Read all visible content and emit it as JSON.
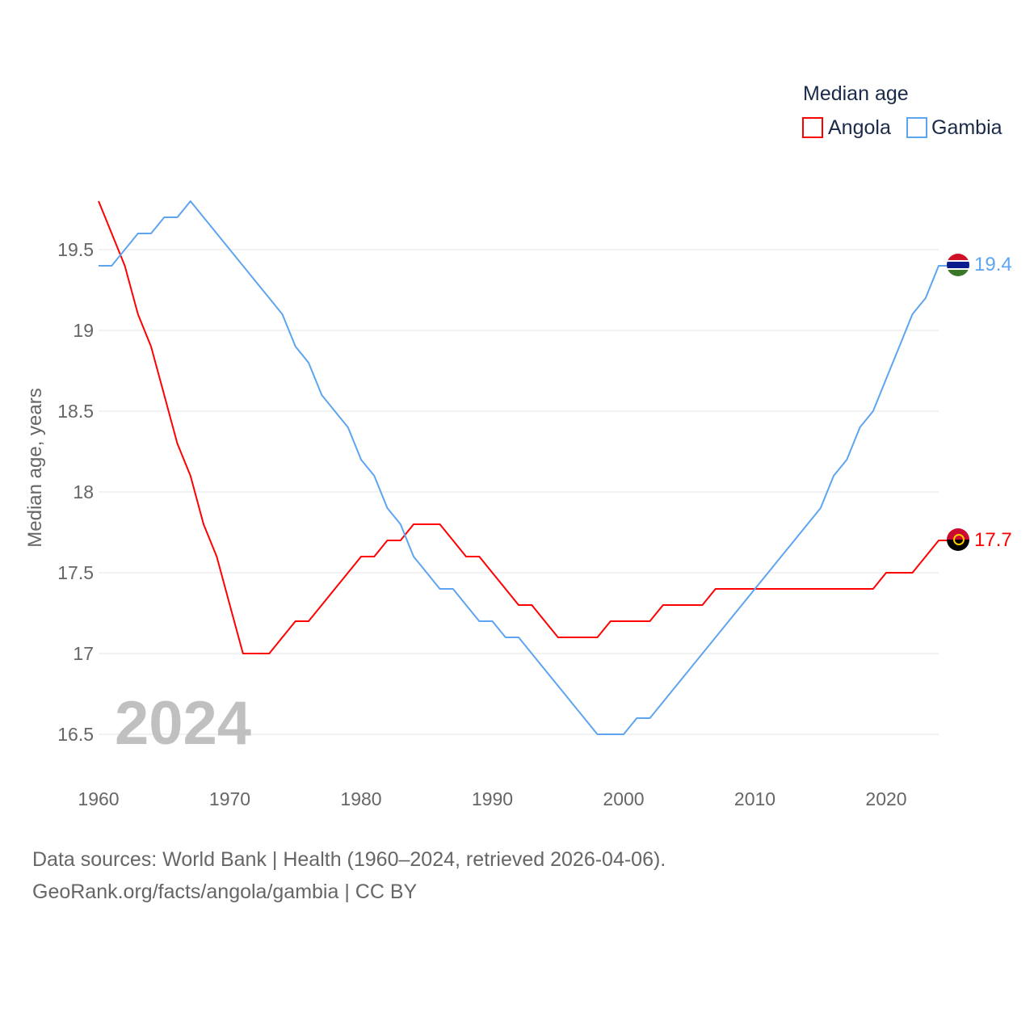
{
  "chart_data": {
    "type": "line",
    "title": "",
    "year_overlay": "2024",
    "xlabel": "",
    "ylabel": "Median age, years",
    "xlim": [
      1960,
      2024
    ],
    "ylim": [
      16.2,
      19.9
    ],
    "x_ticks": [
      1960,
      1970,
      1980,
      1990,
      2000,
      2010,
      2020
    ],
    "y_ticks": [
      16.5,
      17,
      17.5,
      18,
      18.5,
      19,
      19.5
    ],
    "y_tick_labels": [
      "16.5",
      "17",
      "17.5",
      "18",
      "18.5",
      "19",
      "19.5"
    ],
    "grid": true,
    "legend": {
      "title": "Median age",
      "position": "top-right"
    },
    "x": [
      1960,
      1961,
      1962,
      1963,
      1964,
      1965,
      1966,
      1967,
      1968,
      1969,
      1970,
      1971,
      1972,
      1973,
      1974,
      1975,
      1976,
      1977,
      1978,
      1979,
      1980,
      1981,
      1982,
      1983,
      1984,
      1985,
      1986,
      1987,
      1988,
      1989,
      1990,
      1991,
      1992,
      1993,
      1994,
      1995,
      1996,
      1997,
      1998,
      1999,
      2000,
      2001,
      2002,
      2003,
      2004,
      2005,
      2006,
      2007,
      2008,
      2009,
      2010,
      2011,
      2012,
      2013,
      2014,
      2015,
      2016,
      2017,
      2018,
      2019,
      2020,
      2021,
      2022,
      2023,
      2024
    ],
    "series": [
      {
        "name": "Angola",
        "color": "#ff0000",
        "end_label": "17.7",
        "values": [
          19.8,
          19.6,
          19.4,
          19.1,
          18.9,
          18.6,
          18.3,
          18.1,
          17.8,
          17.6,
          17.3,
          17.0,
          17.0,
          17.0,
          17.1,
          17.2,
          17.2,
          17.3,
          17.4,
          17.5,
          17.6,
          17.6,
          17.7,
          17.7,
          17.8,
          17.8,
          17.8,
          17.7,
          17.6,
          17.6,
          17.5,
          17.4,
          17.3,
          17.3,
          17.2,
          17.1,
          17.1,
          17.1,
          17.1,
          17.2,
          17.2,
          17.2,
          17.2,
          17.3,
          17.3,
          17.3,
          17.3,
          17.4,
          17.4,
          17.4,
          17.4,
          17.4,
          17.4,
          17.4,
          17.4,
          17.4,
          17.4,
          17.4,
          17.4,
          17.4,
          17.5,
          17.5,
          17.5,
          17.6,
          17.7
        ]
      },
      {
        "name": "Gambia",
        "color": "#5da5f0",
        "end_label": "19.4",
        "values": [
          19.4,
          19.4,
          19.5,
          19.6,
          19.6,
          19.7,
          19.7,
          19.8,
          19.7,
          19.6,
          19.5,
          19.4,
          19.3,
          19.2,
          19.1,
          18.9,
          18.8,
          18.6,
          18.5,
          18.4,
          18.2,
          18.1,
          17.9,
          17.8,
          17.6,
          17.5,
          17.4,
          17.4,
          17.3,
          17.2,
          17.2,
          17.1,
          17.1,
          17.0,
          16.9,
          16.8,
          16.7,
          16.6,
          16.5,
          16.5,
          16.5,
          16.6,
          16.6,
          16.7,
          16.8,
          16.9,
          17.0,
          17.1,
          17.2,
          17.3,
          17.4,
          17.5,
          17.6,
          17.7,
          17.8,
          17.9,
          18.1,
          18.2,
          18.4,
          18.5,
          18.7,
          18.9,
          19.1,
          19.2,
          19.4
        ]
      }
    ]
  },
  "footer": {
    "sources": "Data sources: World Bank | Health (1960–2024, retrieved 2026-04-06).",
    "link": "GeoRank.org/facts/angola/gambia | CC BY"
  }
}
